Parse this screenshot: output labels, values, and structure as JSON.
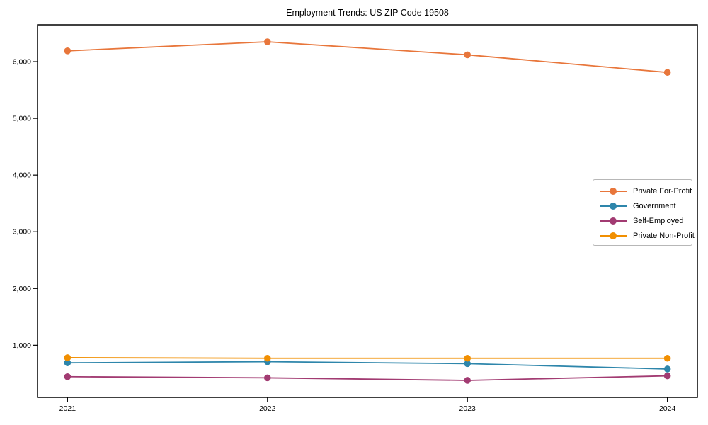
{
  "chart_data": {
    "type": "line",
    "title": "Employment Trends: US ZIP Code 19508",
    "xlabel": "",
    "ylabel": "",
    "x": [
      "2021",
      "2022",
      "2023",
      "2024"
    ],
    "series": [
      {
        "name": "Private For-Profit",
        "color": "#E8763B",
        "values": [
          6190,
          6350,
          6120,
          5810
        ]
      },
      {
        "name": "Government",
        "color": "#2E86AB",
        "values": [
          690,
          710,
          675,
          580
        ]
      },
      {
        "name": "Self-Employed",
        "color": "#A23B72",
        "values": [
          445,
          425,
          380,
          460
        ]
      },
      {
        "name": "Private Non-Profit",
        "color": "#F18F01",
        "values": [
          780,
          770,
          770,
          770
        ]
      }
    ],
    "yticks": [
      1000,
      2000,
      3000,
      4000,
      5000,
      6000
    ],
    "ytick_labels": [
      "1,000",
      "2,000",
      "3,000",
      "4,000",
      "5,000",
      "6,000"
    ],
    "ylim": [
      80,
      6650
    ],
    "xlim_index": [
      -0.15,
      3.15
    ],
    "grid": false,
    "marker": "circle",
    "legend_position": "middle-right"
  }
}
